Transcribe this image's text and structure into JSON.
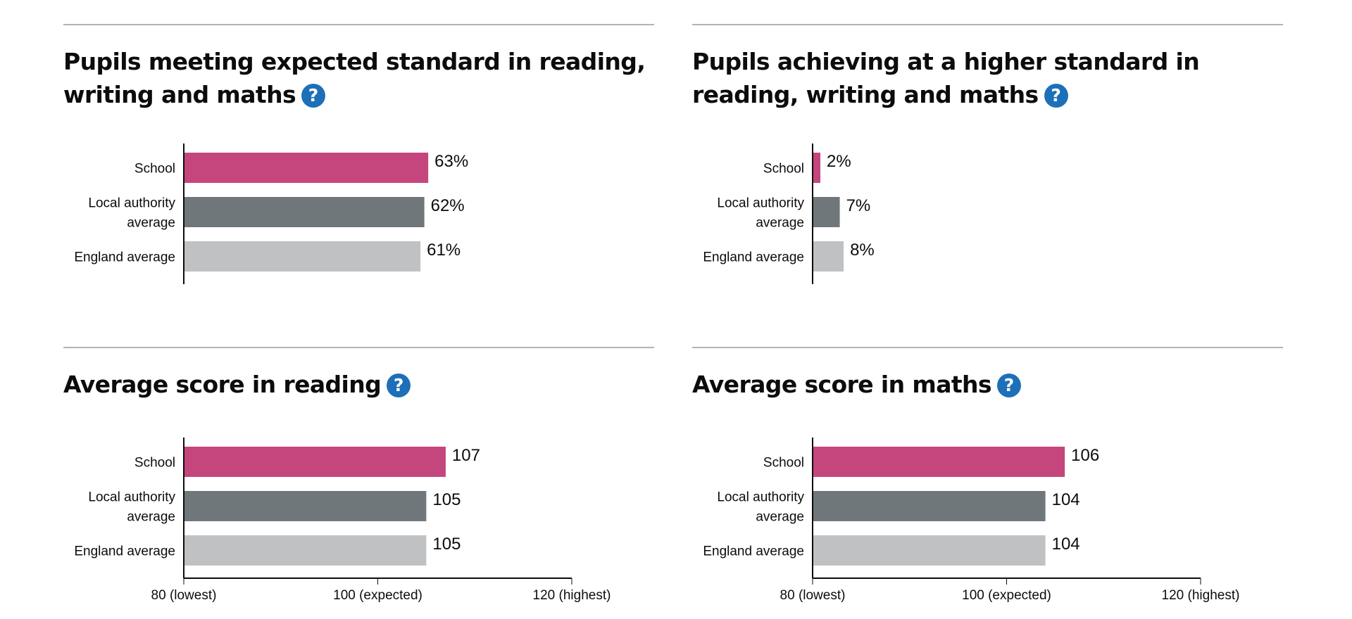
{
  "panels": [
    {
      "title": "Pupils meeting expected standard in reading, writing and maths",
      "help_label": "?",
      "chart_data": {
        "type": "bar",
        "orientation": "horizontal",
        "categories": [
          "School",
          "Local authority average",
          "England average"
        ],
        "category_lines": [
          [
            "School"
          ],
          [
            "Local authority",
            "average"
          ],
          [
            "England average"
          ]
        ],
        "values": [
          63,
          62,
          61
        ],
        "value_labels": [
          "63%",
          "62%",
          "61%"
        ],
        "xlim": [
          0,
          100
        ],
        "ticks": [],
        "colors": [
          "#c5467d",
          "#6f777b",
          "#bfc1c3"
        ]
      }
    },
    {
      "title": "Pupils achieving at a higher standard in reading, writing and maths",
      "help_label": "?",
      "chart_data": {
        "type": "bar",
        "orientation": "horizontal",
        "categories": [
          "School",
          "Local authority average",
          "England average"
        ],
        "category_lines": [
          [
            "School"
          ],
          [
            "Local authority",
            "average"
          ],
          [
            "England average"
          ]
        ],
        "values": [
          2,
          7,
          8
        ],
        "value_labels": [
          "2%",
          "7%",
          "8%"
        ],
        "xlim": [
          0,
          100
        ],
        "ticks": [],
        "colors": [
          "#c5467d",
          "#6f777b",
          "#bfc1c3"
        ]
      }
    },
    {
      "title": "Average score in reading",
      "help_label": "?",
      "chart_data": {
        "type": "bar",
        "orientation": "horizontal",
        "categories": [
          "School",
          "Local authority average",
          "England average"
        ],
        "category_lines": [
          [
            "School"
          ],
          [
            "Local authority",
            "average"
          ],
          [
            "England average"
          ]
        ],
        "values": [
          107,
          105,
          105
        ],
        "value_labels": [
          "107",
          "105",
          "105"
        ],
        "xlim": [
          80,
          120
        ],
        "ticks": [
          {
            "value": 80,
            "label": "80 (lowest)"
          },
          {
            "value": 100,
            "label": "100 (expected)"
          },
          {
            "value": 120,
            "label": "120 (highest)"
          }
        ],
        "colors": [
          "#c5467d",
          "#6f777b",
          "#bfc1c3"
        ]
      }
    },
    {
      "title": "Average score in maths",
      "help_label": "?",
      "chart_data": {
        "type": "bar",
        "orientation": "horizontal",
        "categories": [
          "School",
          "Local authority average",
          "England average"
        ],
        "category_lines": [
          [
            "School"
          ],
          [
            "Local authority",
            "average"
          ],
          [
            "England average"
          ]
        ],
        "values": [
          106,
          104,
          104
        ],
        "value_labels": [
          "106",
          "104",
          "104"
        ],
        "xlim": [
          80,
          120
        ],
        "ticks": [
          {
            "value": 80,
            "label": "80 (lowest)"
          },
          {
            "value": 100,
            "label": "100 (expected)"
          },
          {
            "value": 120,
            "label": "120 (highest)"
          }
        ],
        "colors": [
          "#c5467d",
          "#6f777b",
          "#bfc1c3"
        ]
      }
    }
  ]
}
